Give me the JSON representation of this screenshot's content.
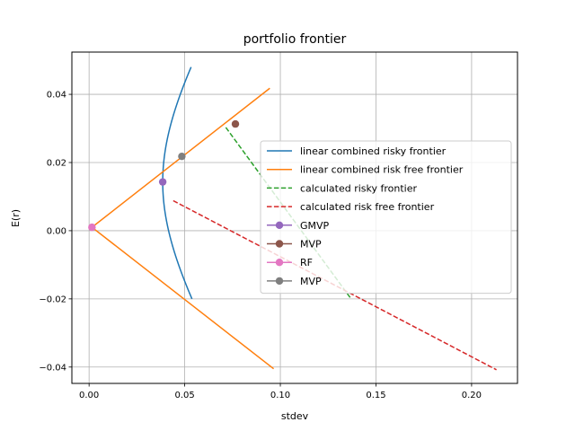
{
  "chart_data": {
    "type": "line",
    "title": "portfolio frontier",
    "xlabel": "stdev",
    "ylabel": "E(r)",
    "xlim": [
      -0.009,
      0.224
    ],
    "ylim": [
      -0.0448,
      0.0524
    ],
    "xticks": [
      0.0,
      0.05,
      0.1,
      0.15,
      0.2
    ],
    "xtick_labels": [
      "0.00",
      "0.05",
      "0.10",
      "0.15",
      "0.20"
    ],
    "yticks": [
      -0.04,
      -0.02,
      0.0,
      0.02,
      0.04
    ],
    "ytick_labels": [
      "−0.04",
      "−0.02",
      "0.00",
      "0.02",
      "0.04"
    ],
    "grid": true,
    "legend_position": "center-right",
    "frontier_params": {
      "gmvp_stdev": 0.0385,
      "gmvp_return": 0.0143,
      "k": 1.2,
      "y_min": -0.02,
      "y_max": 0.048
    },
    "series": [
      {
        "name": "linear combined risky frontier",
        "color": "#1f77b4",
        "style": "solid",
        "marker": false,
        "kind": "hyperbola"
      },
      {
        "name": "linear combined risk free frontier",
        "color": "#ff7f0e",
        "style": "solid",
        "marker": false,
        "segments": [
          [
            [
              0.0015,
              0.001
            ],
            [
              0.0945,
              0.0418
            ]
          ],
          [
            [
              0.0015,
              0.001
            ],
            [
              0.0965,
              -0.0405
            ]
          ]
        ]
      },
      {
        "name": "calculated risky frontier",
        "color": "#2ca02c",
        "style": "dashed",
        "marker": false,
        "x": [
          0.0715,
          0.137
        ],
        "y": [
          0.0303,
          -0.02
        ]
      },
      {
        "name": "calculated risk free frontier",
        "color": "#d62728",
        "style": "dashed",
        "marker": false,
        "x": [
          0.044,
          0.213
        ],
        "y": [
          0.0088,
          -0.0408
        ]
      },
      {
        "name": "GMVP",
        "color": "#9467bd",
        "style": "none",
        "marker": true,
        "x": [
          0.0385
        ],
        "y": [
          0.0143
        ]
      },
      {
        "name": "MVP",
        "color": "#8c564b",
        "style": "none",
        "marker": true,
        "x": [
          0.0765
        ],
        "y": [
          0.0313
        ]
      },
      {
        "name": "RF",
        "color": "#e377c2",
        "style": "none",
        "marker": true,
        "x": [
          0.0015
        ],
        "y": [
          0.001
        ]
      },
      {
        "name": "MVP",
        "color": "#7f7f7f",
        "style": "none",
        "marker": true,
        "x": [
          0.0485
        ],
        "y": [
          0.0218
        ]
      }
    ]
  }
}
